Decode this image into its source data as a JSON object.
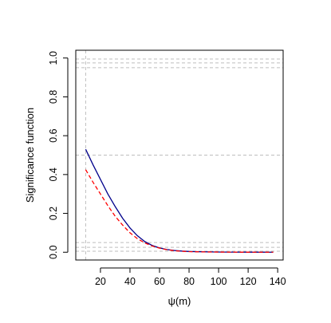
{
  "chart_data": {
    "type": "line",
    "title": "",
    "xlabel": "ψ(m)",
    "ylabel": "Significance function",
    "xlim": [
      3.3,
      143.7
    ],
    "ylim": [
      -0.04,
      1.04
    ],
    "xticks": [
      20,
      40,
      60,
      80,
      100,
      120,
      140
    ],
    "yticks": [
      0.0,
      0.2,
      0.4,
      0.6,
      0.8,
      1.0
    ],
    "grid": false,
    "legend": "none",
    "series": [
      {
        "color": "#00008B",
        "linestyle": "solid",
        "x": [
          10,
          15,
          20,
          25,
          30,
          35,
          40,
          45,
          50,
          55,
          60,
          65,
          70,
          75,
          80,
          90,
          100,
          110,
          120,
          130,
          137
        ],
        "y": [
          0.53,
          0.45,
          0.375,
          0.3,
          0.235,
          0.175,
          0.125,
          0.085,
          0.055,
          0.035,
          0.022,
          0.014,
          0.009,
          0.006,
          0.004,
          0.002,
          0.001,
          0.0005,
          0.0003,
          0.0002,
          0.0001
        ]
      },
      {
        "color": "#FF0000",
        "linestyle": "dashed",
        "x": [
          10,
          15,
          20,
          25,
          30,
          35,
          40,
          45,
          50,
          55,
          60,
          65,
          70,
          75,
          80,
          90,
          100,
          110,
          120,
          130,
          137
        ],
        "y": [
          0.425,
          0.36,
          0.3,
          0.24,
          0.185,
          0.14,
          0.1,
          0.07,
          0.048,
          0.032,
          0.021,
          0.013,
          0.008,
          0.005,
          0.003,
          0.0015,
          0.0008,
          0.0004,
          0.0002,
          0.0001,
          0.0001
        ]
      }
    ],
    "reference_hlines": [
      0.005,
      0.025,
      0.05,
      0.5,
      0.95,
      0.975,
      0.995
    ],
    "reference_vline": 10,
    "reference_line_color": "#BEBEBE"
  }
}
